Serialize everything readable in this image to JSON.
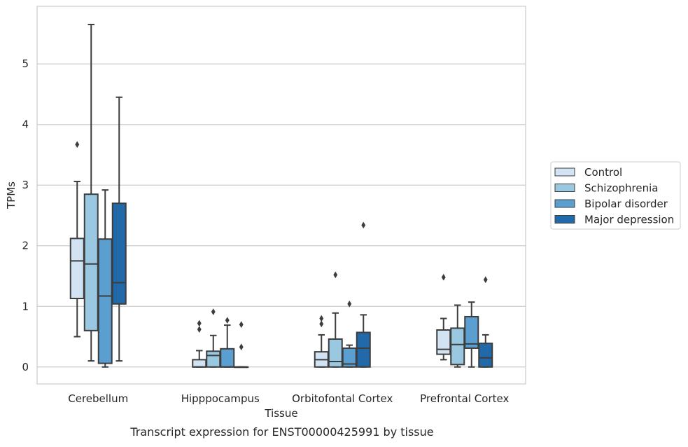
{
  "chart_data": {
    "type": "box",
    "title": "",
    "caption": "Transcript expression for ENST00000425991 by tissue",
    "xlabel": "Tissue",
    "ylabel": "TPMs",
    "ylim": [
      -0.28,
      5.95
    ],
    "yticks": [
      0,
      1,
      2,
      3,
      4,
      5
    ],
    "grid": "horizontal",
    "legend_position": "right",
    "categories": [
      "Cerebellum",
      "Hipppocampus",
      "Orbitofontal Cortex",
      "Prefrontal Cortex"
    ],
    "series": [
      {
        "name": "Control",
        "color": "#d2e3f3",
        "boxes": [
          {
            "whislo": 0.5,
            "q1": 1.13,
            "med": 1.75,
            "q3": 2.12,
            "whishi": 3.06,
            "fliers": [
              3.67
            ]
          },
          {
            "whislo": 0.0,
            "q1": 0.0,
            "med": 0.0,
            "q3": 0.12,
            "whishi": 0.27,
            "fliers": [
              0.62,
              0.72
            ]
          },
          {
            "whislo": 0.0,
            "q1": 0.0,
            "med": 0.12,
            "q3": 0.25,
            "whishi": 0.53,
            "fliers": [
              0.71,
              0.8
            ]
          },
          {
            "whislo": 0.12,
            "q1": 0.21,
            "med": 0.29,
            "q3": 0.61,
            "whishi": 0.8,
            "fliers": [
              1.48
            ]
          }
        ]
      },
      {
        "name": "Schizophrenia",
        "color": "#9ac8e0",
        "boxes": [
          {
            "whislo": 0.1,
            "q1": 0.6,
            "med": 1.7,
            "q3": 2.85,
            "whishi": 5.65,
            "fliers": []
          },
          {
            "whislo": 0.0,
            "q1": 0.0,
            "med": 0.19,
            "q3": 0.26,
            "whishi": 0.52,
            "fliers": [
              0.91
            ]
          },
          {
            "whislo": 0.0,
            "q1": 0.0,
            "med": 0.09,
            "q3": 0.46,
            "whishi": 0.89,
            "fliers": [
              1.52
            ]
          },
          {
            "whislo": 0.0,
            "q1": 0.04,
            "med": 0.37,
            "q3": 0.64,
            "whishi": 1.02,
            "fliers": []
          }
        ]
      },
      {
        "name": "Bipolar disorder",
        "color": "#5a9fcf",
        "boxes": [
          {
            "whislo": 0.0,
            "q1": 0.06,
            "med": 1.17,
            "q3": 2.11,
            "whishi": 2.92,
            "fliers": []
          },
          {
            "whislo": 0.0,
            "q1": 0.0,
            "med": 0.0,
            "q3": 0.3,
            "whishi": 0.69,
            "fliers": [
              0.77
            ]
          },
          {
            "whislo": 0.0,
            "q1": 0.0,
            "med": 0.05,
            "q3": 0.31,
            "whishi": 0.36,
            "fliers": [
              1.04
            ]
          },
          {
            "whislo": 0.0,
            "q1": 0.31,
            "med": 0.38,
            "q3": 0.83,
            "whishi": 1.07,
            "fliers": []
          }
        ]
      },
      {
        "name": "Major depression",
        "color": "#2169a9",
        "boxes": [
          {
            "whislo": 0.1,
            "q1": 1.04,
            "med": 1.39,
            "q3": 2.7,
            "whishi": 4.45,
            "fliers": []
          },
          {
            "whislo": 0.0,
            "q1": 0.0,
            "med": 0.0,
            "q3": 0.0,
            "whishi": 0.0,
            "fliers": [
              0.33,
              0.7
            ]
          },
          {
            "whislo": 0.0,
            "q1": 0.0,
            "med": 0.31,
            "q3": 0.57,
            "whishi": 0.86,
            "fliers": [
              2.34
            ]
          },
          {
            "whislo": 0.0,
            "q1": 0.0,
            "med": 0.15,
            "q3": 0.39,
            "whishi": 0.53,
            "fliers": [
              1.44
            ]
          }
        ]
      }
    ]
  }
}
